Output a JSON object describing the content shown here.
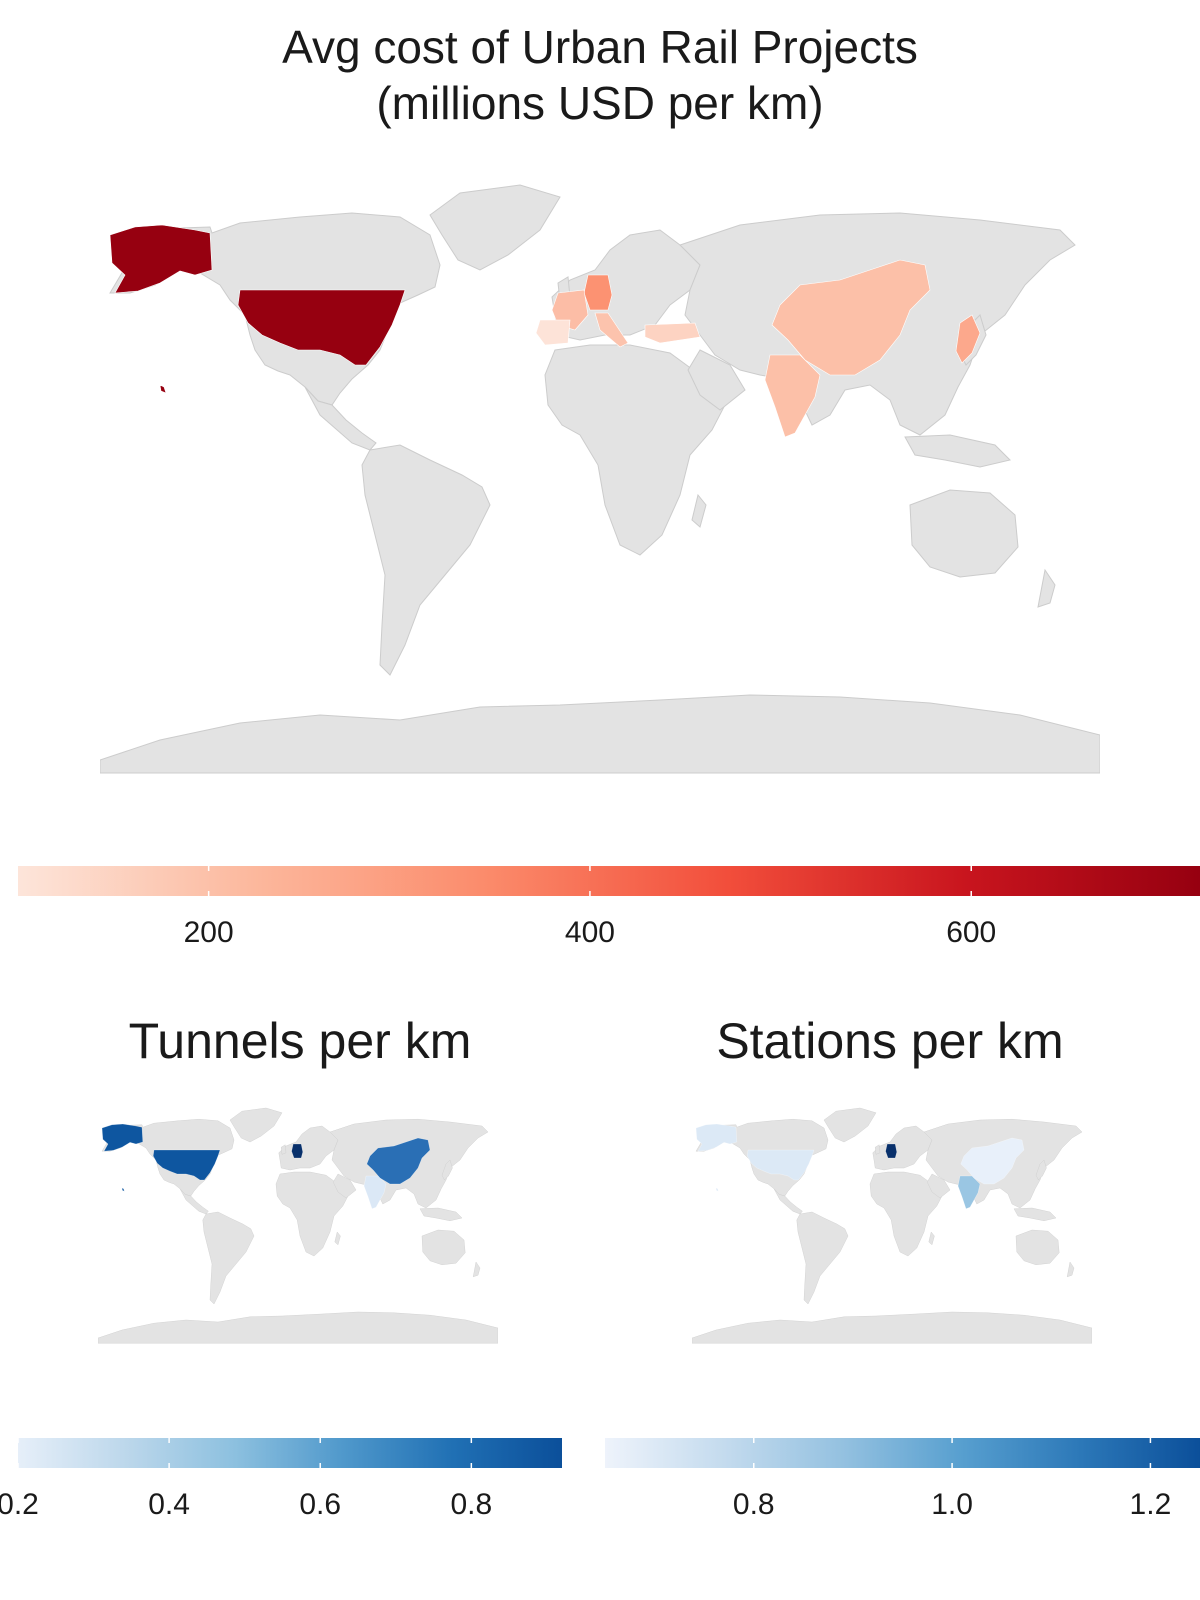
{
  "main": {
    "title_line1": "Avg cost of Urban Rail Projects",
    "title_line2": "(millions USD per km)",
    "legend": {
      "ticks": [
        "200",
        "400",
        "600"
      ],
      "tick_values": [
        200,
        400,
        600
      ],
      "range": [
        100,
        720
      ],
      "colors": [
        "#fde5da",
        "#fcb89d",
        "#fb8a6a",
        "#f24e3b",
        "#c9151e",
        "#960010"
      ]
    },
    "countries": [
      {
        "name": "United States",
        "value": 720,
        "color": "#960010"
      },
      {
        "name": "Germany",
        "value": 300,
        "color": "#fc9272"
      },
      {
        "name": "Japan",
        "value": 260,
        "color": "#fca88c"
      },
      {
        "name": "China",
        "value": 200,
        "color": "#fcc0a8"
      },
      {
        "name": "India",
        "value": 200,
        "color": "#fcc0a8"
      },
      {
        "name": "France",
        "value": 210,
        "color": "#fcbda6"
      },
      {
        "name": "Italy",
        "value": 190,
        "color": "#fcc3ad"
      },
      {
        "name": "Turkey",
        "value": 160,
        "color": "#fdd3c2"
      },
      {
        "name": "Spain",
        "value": 120,
        "color": "#fde3d8"
      }
    ]
  },
  "tunnels": {
    "title": "Tunnels per km",
    "legend": {
      "ticks": [
        "0.2",
        "0.4",
        "0.6",
        "0.8"
      ],
      "tick_values": [
        0.2,
        0.4,
        0.6,
        0.8
      ],
      "range": [
        0.2,
        0.92
      ],
      "colors": [
        "#e6eff9",
        "#bcd7eb",
        "#8cc0df",
        "#4f98cb",
        "#2070b4",
        "#0b4f9a"
      ]
    },
    "countries": [
      {
        "name": "United States",
        "value": 0.9,
        "color": "#0e56a0"
      },
      {
        "name": "Germany",
        "value": 0.95,
        "color": "#08306b"
      },
      {
        "name": "China",
        "value": 0.75,
        "color": "#2a6fb5"
      },
      {
        "name": "India",
        "value": 0.25,
        "color": "#dbe8f6"
      }
    ]
  },
  "stations": {
    "title": "Stations per km",
    "legend": {
      "ticks": [
        "0.8",
        "1.0",
        "1.2"
      ],
      "tick_values": [
        0.8,
        1.0,
        1.2
      ],
      "range": [
        0.65,
        1.25
      ],
      "colors": [
        "#eef3fb",
        "#c4dbee",
        "#94c1e0",
        "#579fcf",
        "#2c78b8",
        "#0b4f9a"
      ]
    },
    "countries": [
      {
        "name": "United States",
        "value": 0.68,
        "color": "#dce9f6"
      },
      {
        "name": "Germany",
        "value": 1.3,
        "color": "#08306b"
      },
      {
        "name": "India",
        "value": 0.87,
        "color": "#9ac6e3"
      },
      {
        "name": "China",
        "value": 0.67,
        "color": "#e8f0fa"
      }
    ]
  },
  "colors": {
    "land": "#e3e3e3",
    "land_border": "#cccccc",
    "text": "#1a1a1a"
  }
}
